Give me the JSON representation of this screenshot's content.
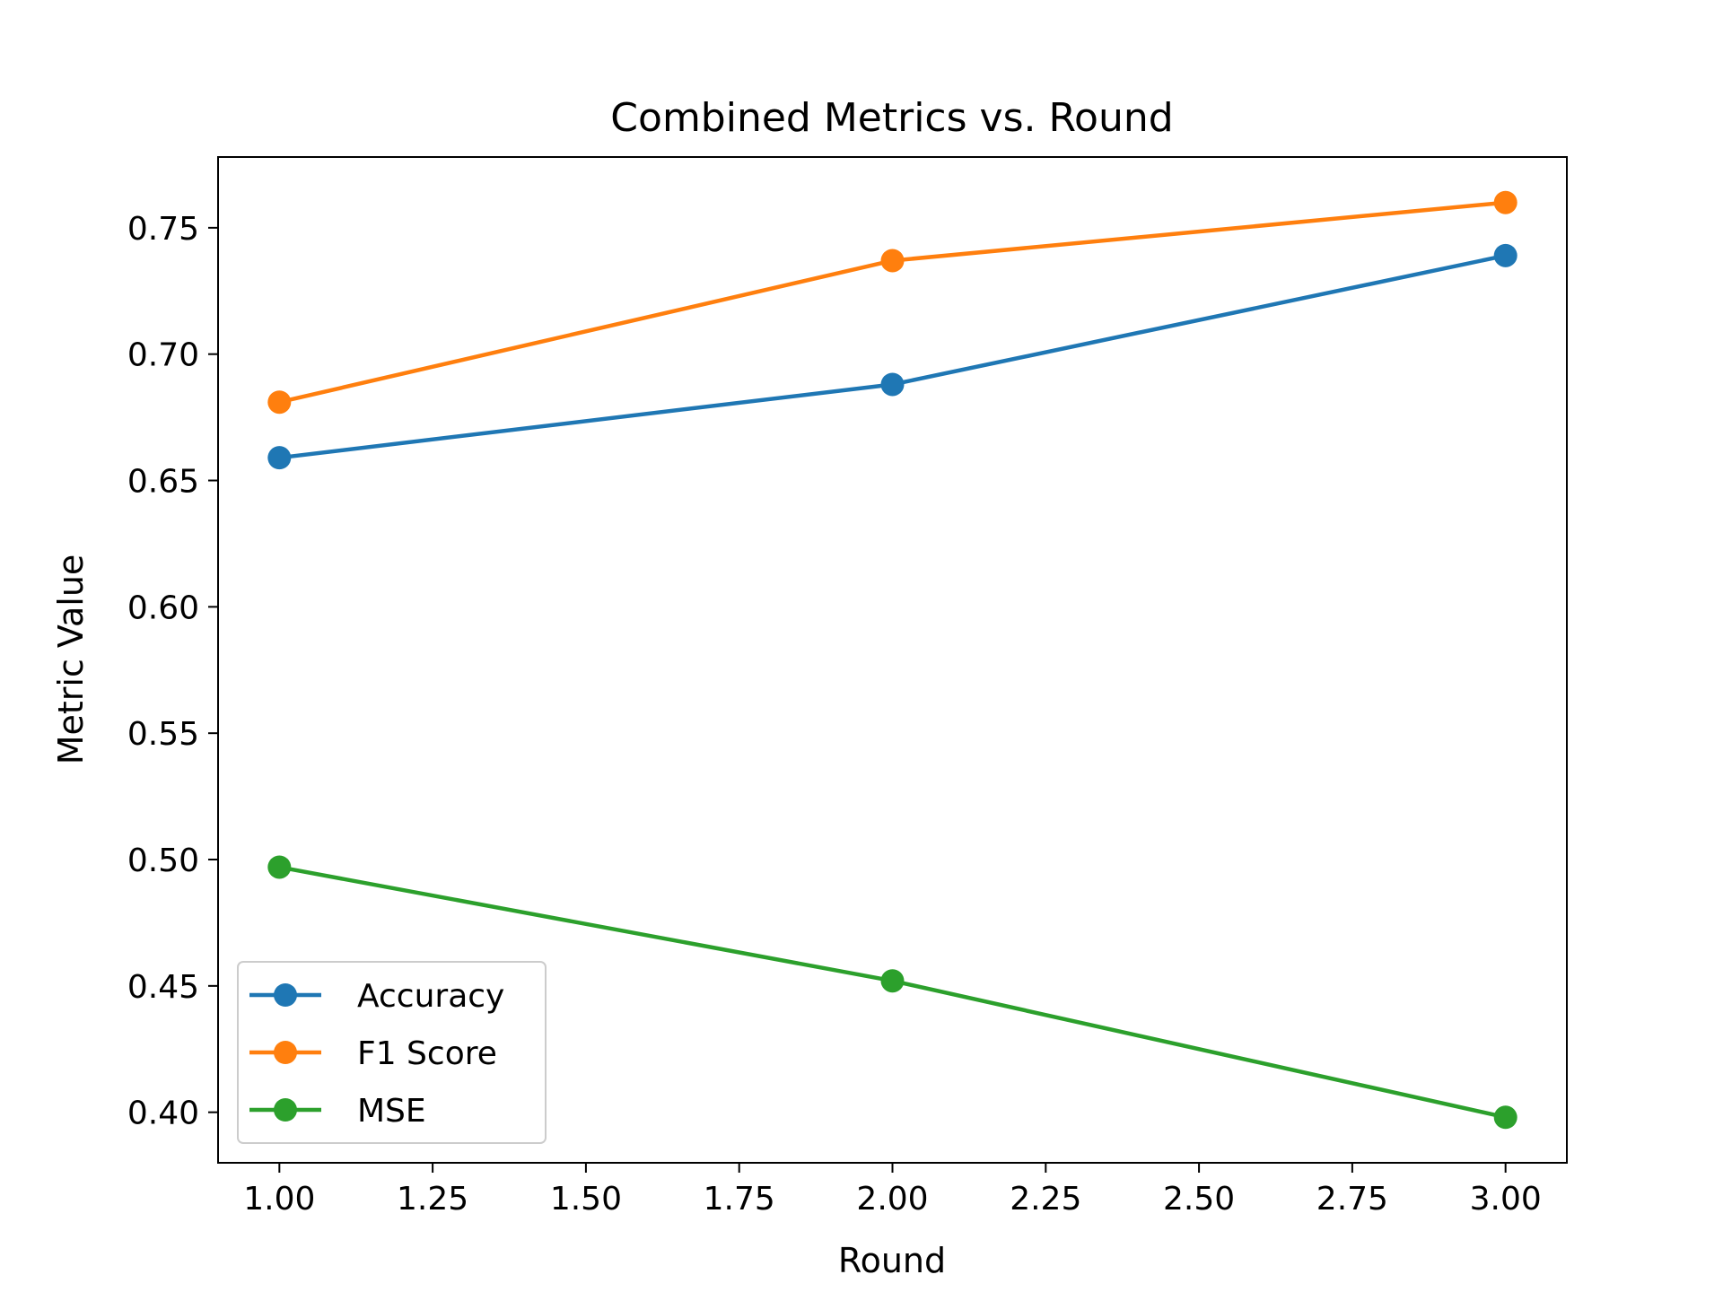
{
  "chart_data": {
    "type": "line",
    "title": "Combined Metrics vs. Round",
    "xlabel": "Round",
    "ylabel": "Metric Value",
    "xlim": [
      0.9,
      3.1
    ],
    "ylim": [
      0.38,
      0.778
    ],
    "xticks": [
      1.0,
      1.25,
      1.5,
      1.75,
      2.0,
      2.25,
      2.5,
      2.75,
      3.0
    ],
    "xtick_labels": [
      "1.00",
      "1.25",
      "1.50",
      "1.75",
      "2.00",
      "2.25",
      "2.50",
      "2.75",
      "3.00"
    ],
    "yticks": [
      0.4,
      0.45,
      0.5,
      0.55,
      0.6,
      0.65,
      0.7,
      0.75
    ],
    "ytick_labels": [
      "0.40",
      "0.45",
      "0.50",
      "0.55",
      "0.60",
      "0.65",
      "0.70",
      "0.75"
    ],
    "x": [
      1,
      2,
      3
    ],
    "series": [
      {
        "name": "Accuracy",
        "color": "#1f77b4",
        "values": [
          0.659,
          0.688,
          0.739
        ]
      },
      {
        "name": "F1 Score",
        "color": "#ff7f0e",
        "values": [
          0.681,
          0.737,
          0.76
        ]
      },
      {
        "name": "MSE",
        "color": "#2ca02c",
        "values": [
          0.497,
          0.452,
          0.398
        ]
      }
    ],
    "grid": false,
    "legend": "lower-left"
  }
}
